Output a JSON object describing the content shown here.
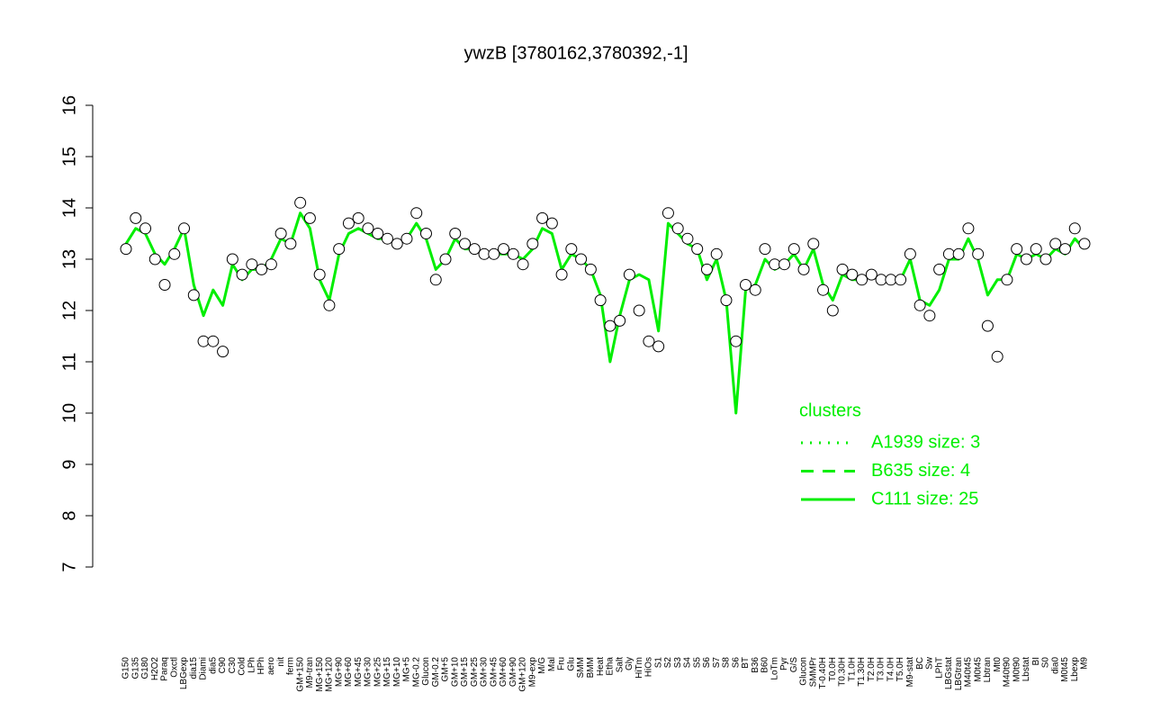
{
  "chart_data": {
    "type": "line",
    "title": "ywzB [3780162,3780392,-1]",
    "categories": [
      "G150",
      "G135",
      "G180",
      "H2O2",
      "Paraq",
      "Oxctl",
      "LBGexp",
      "dia15",
      "Diami",
      "dia5",
      "C90",
      "C30",
      "Cold",
      "LPh",
      "HPh",
      "aero",
      "nit",
      "ferm",
      "GM+150",
      "M9-tran",
      "MG+150",
      "MG+120",
      "MG+90",
      "MG+60",
      "MG+45",
      "MG+30",
      "MG+25",
      "MG+15",
      "MG+10",
      "MG+5",
      "MG-0.2",
      "Glucon",
      "GM-0.2",
      "GM+5",
      "GM+10",
      "GM+15",
      "GM+25",
      "GM+30",
      "GM+45",
      "GM+60",
      "GM+90",
      "GM+120",
      "M9-exp",
      "M/G",
      "Mal",
      "Fru",
      "Glu",
      "SMM",
      "BMM",
      "Heat",
      "Etha",
      "Salt",
      "Gly",
      "HiTm",
      "HiOs",
      "S1",
      "S2",
      "S3",
      "S4",
      "S5",
      "S6",
      "S7",
      "S8",
      "S6",
      "BT",
      "B36",
      "B60",
      "LoTm",
      "Pyr",
      "G/S",
      "Glucon",
      "SMMPr",
      "T-0.40H",
      "T0.0H",
      "T0.30H",
      "T1.0H",
      "T1.30H",
      "T2.0H",
      "T3.0H",
      "T4.0H",
      "T5.0H",
      "M9-stat",
      "BC",
      "Sw",
      "LPhT",
      "LBGstat",
      "LBGtran",
      "M40t45",
      "M0t45",
      "Lbtran",
      "Mt0",
      "M40t90",
      "M0t90",
      "Lbstat",
      "BI",
      "S0",
      "dia0",
      "M0t45",
      "Lbexp",
      "M9"
    ],
    "series": [
      {
        "name": "points",
        "color": "#000000",
        "values": [
          13.2,
          13.8,
          13.6,
          13.0,
          12.5,
          13.1,
          13.6,
          12.3,
          11.4,
          11.4,
          11.2,
          13.0,
          12.7,
          12.9,
          12.8,
          12.9,
          13.5,
          13.3,
          14.1,
          13.8,
          12.7,
          12.1,
          13.2,
          13.7,
          13.8,
          13.6,
          13.5,
          13.4,
          13.3,
          13.4,
          13.9,
          13.5,
          12.6,
          13.0,
          13.5,
          13.3,
          13.2,
          13.1,
          13.1,
          13.2,
          13.1,
          12.9,
          13.3,
          13.8,
          13.7,
          12.7,
          13.2,
          13.0,
          12.8,
          12.2,
          11.7,
          11.8,
          12.7,
          12.0,
          11.4,
          11.3,
          13.9,
          13.6,
          13.4,
          13.2,
          12.8,
          13.1,
          12.2,
          11.4,
          12.5,
          12.4,
          13.2,
          12.9,
          12.9,
          13.2,
          12.8,
          13.3,
          12.4,
          12.0,
          12.8,
          12.7,
          12.6,
          12.7,
          12.6,
          12.6,
          12.6,
          13.1,
          12.1,
          11.9,
          12.8,
          13.1,
          13.1,
          13.6,
          13.1,
          11.7,
          11.1,
          12.6,
          13.2,
          13.0,
          13.2,
          13.0,
          13.3,
          13.2,
          13.6,
          13.3
        ]
      },
      {
        "name": "C111 size: 25",
        "color": "#00ee00",
        "values": [
          13.3,
          13.6,
          13.5,
          13.1,
          12.9,
          13.2,
          13.6,
          12.5,
          11.9,
          12.4,
          12.1,
          12.9,
          12.6,
          12.8,
          12.8,
          13.0,
          13.4,
          13.3,
          13.9,
          13.6,
          12.6,
          12.2,
          13.1,
          13.5,
          13.6,
          13.5,
          13.4,
          13.4,
          13.3,
          13.4,
          13.7,
          13.4,
          12.8,
          13.0,
          13.4,
          13.2,
          13.2,
          13.1,
          13.1,
          13.1,
          13.1,
          13.0,
          13.2,
          13.6,
          13.5,
          12.8,
          13.1,
          13.0,
          12.8,
          12.3,
          11.0,
          11.9,
          12.6,
          12.7,
          12.6,
          11.6,
          13.7,
          13.5,
          13.3,
          13.2,
          12.6,
          13.0,
          12.2,
          10.0,
          12.4,
          12.5,
          13.0,
          12.8,
          12.9,
          13.1,
          12.8,
          13.2,
          12.5,
          12.2,
          12.7,
          12.6,
          12.6,
          12.7,
          12.6,
          12.6,
          12.6,
          13.0,
          12.2,
          12.1,
          12.4,
          13.0,
          13.0,
          13.4,
          13.0,
          12.3,
          12.6,
          12.6,
          13.1,
          13.0,
          13.1,
          13.0,
          13.2,
          13.1,
          13.4,
          13.2
        ]
      }
    ],
    "ylim": [
      7,
      16
    ],
    "yticks": [
      7,
      8,
      9,
      10,
      11,
      12,
      13,
      14,
      15,
      16
    ],
    "legend": {
      "title": "clusters",
      "position": "right",
      "entries": [
        {
          "label": "A1939 size: 3",
          "dash": "dotted"
        },
        {
          "label": "B635 size: 4",
          "dash": "dashed"
        },
        {
          "label": "C111 size: 25",
          "dash": "solid"
        }
      ]
    }
  }
}
